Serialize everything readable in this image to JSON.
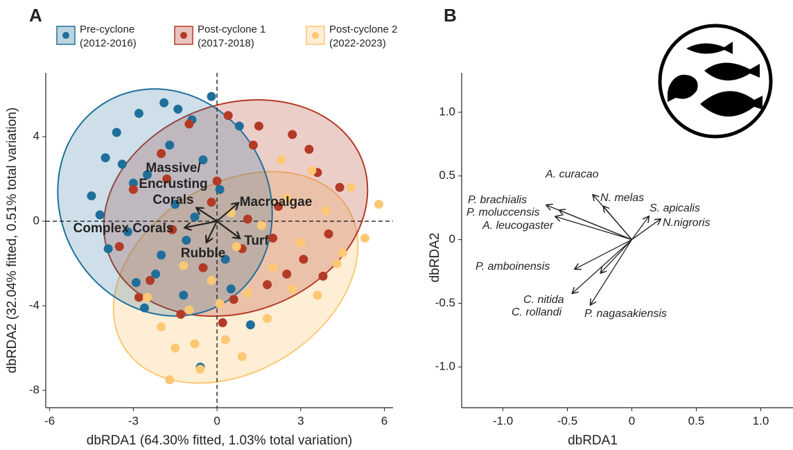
{
  "chart_data": [
    {
      "type": "scatter",
      "panel": "A",
      "xlabel": "dbRDA1 (64.30% fitted, 1.03% total variation)",
      "ylabel": "dbRDA2 (32.04% fitted, 0.51% total variation)",
      "xlim": [
        -6.14,
        6.31
      ],
      "ylim": [
        -8.82,
        7.02
      ],
      "xticks": [
        -6,
        -3,
        0,
        3,
        6
      ],
      "yticks": [
        -8,
        -4,
        0,
        4
      ],
      "series": [
        {
          "name": "Pre-cyclone",
          "period": "(2012-2016)",
          "color": "#1f6f99",
          "x": [
            -4.5,
            -4.0,
            -3.6,
            -3.2,
            -2.8,
            -2.5,
            -2.2,
            -1.9,
            -1.5,
            -1.2,
            -0.9,
            -0.5,
            -0.2,
            0.3,
            0.8,
            1.2,
            -3.9,
            -3.0,
            -2.6,
            -1.7,
            -1.1,
            -0.6,
            0.1,
            -4.2,
            -3.4,
            -2.0,
            -1.4,
            -2.9,
            -0.8,
            0.5
          ],
          "y": [
            1.2,
            3.0,
            4.2,
            -0.5,
            5.1,
            2.2,
            -2.5,
            5.6,
            0.8,
            -3.5,
            4.8,
            2.9,
            5.9,
            -1.8,
            4.5,
            -4.9,
            -1.3,
            1.8,
            -4.1,
            3.6,
            -0.9,
            -6.9,
            1.5,
            0.3,
            2.7,
            -1.6,
            5.3,
            -2.9,
            0.2,
            -3.2
          ]
        },
        {
          "name": "Post-cyclone 1",
          "period": "(2017-2018)",
          "color": "#b33a26",
          "x": [
            -3.5,
            -3.0,
            -2.4,
            -2.0,
            -1.6,
            -1.0,
            -0.5,
            0,
            0.4,
            0.9,
            1.3,
            1.8,
            2.2,
            2.7,
            3.1,
            3.6,
            4.0,
            4.4,
            -2.8,
            -1.3,
            0.6,
            1.5,
            2.5,
            3.3,
            -0.2,
            1.1,
            2.0,
            3.8,
            -1.8,
            0.2
          ],
          "y": [
            -1.2,
            1.5,
            -2.8,
            3.2,
            -0.4,
            4.6,
            -2.2,
            1.9,
            5.0,
            -1.3,
            3.6,
            -3.0,
            0.7,
            4.1,
            -1.8,
            2.3,
            -0.6,
            1.6,
            -3.6,
            -4.4,
            -3.7,
            4.5,
            -2.5,
            3.4,
            0.9,
            0.1,
            -0.8,
            -2.6,
            2.0,
            -4.8
          ]
        },
        {
          "name": "Post-cyclone 2",
          "period": "(2022-2023)",
          "color": "#fdc874",
          "x": [
            -2.5,
            -2.0,
            -1.5,
            -1.0,
            -0.6,
            -0.2,
            0.3,
            0.7,
            1.1,
            1.6,
            2.0,
            2.5,
            3.0,
            3.4,
            3.9,
            4.3,
            4.8,
            5.3,
            5.8,
            -1.7,
            -0.8,
            0.1,
            0.9,
            1.8,
            2.7,
            3.6,
            4.5,
            -1.2,
            0.5,
            2.3
          ],
          "y": [
            -3.6,
            -5.0,
            -6.0,
            -4.2,
            -7.0,
            -2.8,
            -5.6,
            -1.2,
            -3.4,
            -0.2,
            -2.2,
            1.1,
            -1.0,
            2.4,
            0.5,
            -2.0,
            1.6,
            -0.8,
            0.8,
            -7.5,
            -5.8,
            -3.9,
            -6.4,
            -4.6,
            -3.2,
            -3.5,
            -1.5,
            -2.1,
            0.4,
            2.9
          ]
        }
      ],
      "vectors": [
        {
          "label": [
            "Massive/",
            "Encrusting",
            "Corals"
          ],
          "x": -0.72,
          "y": 0.62
        },
        {
          "label": "Macroalgae",
          "x": 0.75,
          "y": 0.85
        },
        {
          "label": "Complex Corals",
          "x": -1.14,
          "y": -0.3
        },
        {
          "label": "Turf",
          "x": 0.8,
          "y": -0.79
        },
        {
          "label": "Rubble",
          "x": -0.37,
          "y": -0.98
        }
      ]
    },
    {
      "type": "biplot",
      "panel": "B",
      "xlabel": "dbRDA1",
      "ylabel": "dbRDA2",
      "xlim": [
        -1.32,
        1.25
      ],
      "ylim": [
        -1.32,
        1.31
      ],
      "xticks": [
        {
          "value": -1.0,
          "label": "-1.0"
        },
        {
          "value": -0.5,
          "label": "-0.5"
        },
        0,
        0.5,
        {
          "value": 1.0,
          "label": "1.0"
        }
      ],
      "yticks": [
        {
          "value": -1.0,
          "label": "-1.0"
        },
        {
          "value": -0.5,
          "label": "-0.5"
        },
        0,
        0.5,
        {
          "value": 1.0,
          "label": "1.0"
        }
      ],
      "vectors": [
        {
          "label": "A. curacao",
          "x": -0.3,
          "y": 0.35
        },
        {
          "label": "N. melas",
          "x": -0.22,
          "y": 0.26
        },
        {
          "label": "P. brachialis",
          "x": -0.66,
          "y": 0.27
        },
        {
          "label": "P. moluccensis",
          "x": -0.56,
          "y": 0.23
        },
        {
          "label": "A. leucogaster",
          "x": -0.59,
          "y": 0.18
        },
        {
          "label": "S. apicalis",
          "x": 0.13,
          "y": 0.18
        },
        {
          "label": "N.nigroris",
          "x": 0.22,
          "y": 0.16
        },
        {
          "label": "P. amboinensis",
          "x": -0.44,
          "y": -0.23
        },
        {
          "label": "C. nitida",
          "x": -0.46,
          "y": -0.42
        },
        {
          "label": "C. rollandi",
          "x": -0.24,
          "y": -0.26
        },
        {
          "label": "P. nagasakiensis",
          "x": -0.32,
          "y": -0.51
        }
      ]
    }
  ]
}
